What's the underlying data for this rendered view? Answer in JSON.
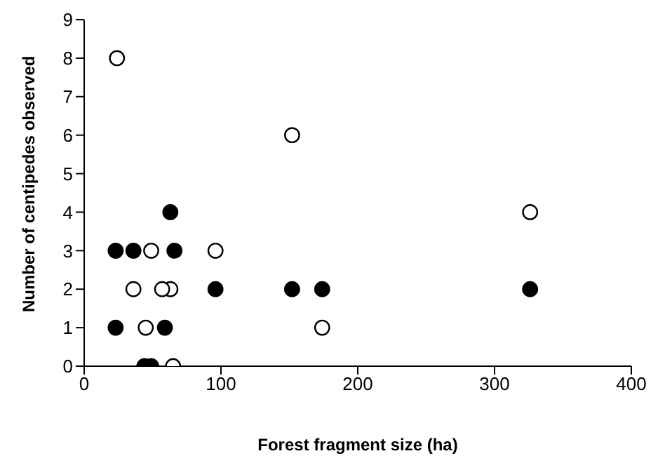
{
  "chart_data": {
    "type": "scatter",
    "xlabel": "Forest fragment size (ha)",
    "ylabel": "Number of centipedes observed",
    "xlim": [
      0,
      400
    ],
    "xticks": [
      0,
      100,
      200,
      300,
      400
    ],
    "ylim": [
      0,
      9
    ],
    "yticks": [
      0,
      1,
      2,
      3,
      4,
      5,
      6,
      7,
      8,
      9
    ],
    "grid": false,
    "legend": false,
    "marker": "circle",
    "series": [
      {
        "color": "#000000",
        "x": [
          23,
          23,
          36,
          63,
          66,
          59,
          44,
          49,
          96,
          152,
          174,
          326
        ],
        "values": [
          3,
          1,
          3,
          4,
          3,
          1,
          0,
          0,
          2,
          2,
          2,
          2
        ]
      },
      {
        "color": "#ffffff",
        "x": [
          24,
          49,
          36,
          63,
          57,
          45,
          65,
          96,
          152,
          174,
          326
        ],
        "values": [
          8,
          3,
          2,
          2,
          2,
          1,
          0,
          3,
          6,
          1,
          4
        ]
      }
    ]
  }
}
